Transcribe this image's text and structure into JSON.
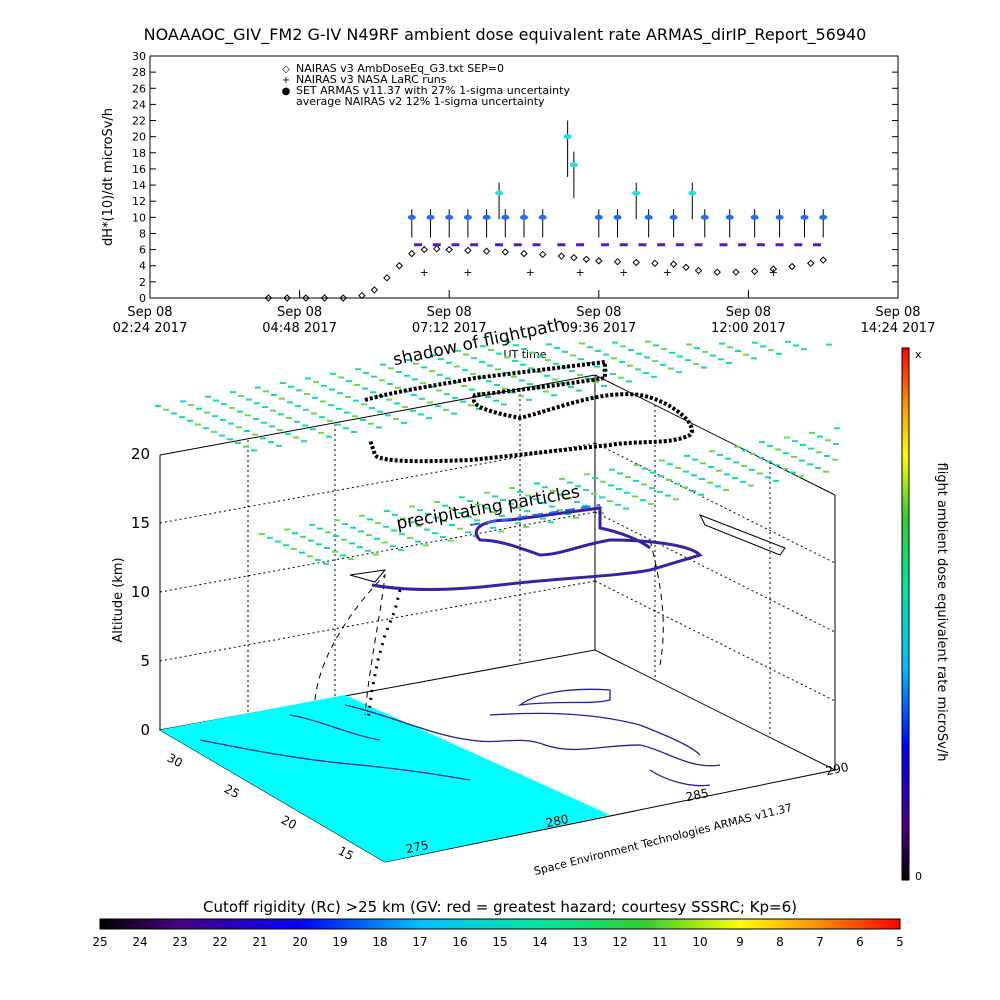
{
  "header": {
    "title": "NOAAAOC_GIV_FM2 G-IV   N49RF  ambient dose equivalent rate ARMAS_dirIP_Report_56940"
  },
  "chart_data": [
    {
      "type": "scatter",
      "ylabel": "dH*(10)/dt microSv/h",
      "ylim": [
        0,
        30
      ],
      "yticks": [
        "0",
        "2",
        "4",
        "6",
        "8",
        "10",
        "12",
        "14",
        "16",
        "18",
        "20",
        "22",
        "24",
        "26",
        "28",
        "30"
      ],
      "xticks": [
        {
          "date": "Sep 08",
          "time": "02:24 2017"
        },
        {
          "date": "Sep 08",
          "time": "04:48 2017"
        },
        {
          "date": "Sep 08",
          "time": "07:12 2017"
        },
        {
          "date": "Sep 08",
          "time": "09:36 2017"
        },
        {
          "date": "Sep 08",
          "time": "12:00 2017"
        },
        {
          "date": "Sep 08",
          "time": "14:24 2017"
        }
      ],
      "xlabel": "UT time",
      "xlim_hours": [
        2.4,
        14.4
      ],
      "legend": [
        {
          "marker": "◇",
          "label": "NAIRAS v3 AmbDoseEq_G3.txt SEP=0"
        },
        {
          "marker": "+",
          "label": "NAIRAS v3 NASA LaRC runs"
        },
        {
          "marker": "●",
          "label": "SET ARMAS v11.37 with 27% 1-sigma uncertainty"
        },
        {
          "marker": "",
          "label": "average NAIRAS v2 12% 1-sigma uncertainty"
        }
      ],
      "series": [
        {
          "name": "NAIRAS v3 AmbDoseEq_G3.txt SEP=0",
          "points": [
            [
              4.3,
              0
            ],
            [
              4.6,
              0
            ],
            [
              4.9,
              0
            ],
            [
              5.2,
              0
            ],
            [
              5.5,
              0
            ],
            [
              5.8,
              0.3
            ],
            [
              6.0,
              1
            ],
            [
              6.2,
              2.5
            ],
            [
              6.4,
              4
            ],
            [
              6.6,
              5.5
            ],
            [
              6.8,
              6
            ],
            [
              7.0,
              6.1
            ],
            [
              7.2,
              6
            ],
            [
              7.5,
              5.9
            ],
            [
              7.8,
              5.8
            ],
            [
              8.1,
              5.7
            ],
            [
              8.4,
              5.5
            ],
            [
              8.7,
              5.4
            ],
            [
              9.0,
              5.2
            ],
            [
              9.2,
              5
            ],
            [
              9.4,
              4.8
            ],
            [
              9.6,
              4.6
            ],
            [
              9.9,
              4.5
            ],
            [
              10.2,
              4.4
            ],
            [
              10.5,
              4.3
            ],
            [
              10.8,
              4.2
            ],
            [
              11.0,
              3.8
            ],
            [
              11.2,
              3.4
            ],
            [
              11.5,
              3.2
            ],
            [
              11.8,
              3.2
            ],
            [
              12.1,
              3.3
            ],
            [
              12.4,
              3.6
            ],
            [
              12.7,
              3.9
            ],
            [
              13.0,
              4.3
            ],
            [
              13.2,
              4.7
            ]
          ]
        },
        {
          "name": "SET ARMAS v11.37 with 27% 1-sigma uncertainty",
          "points": [
            [
              6.6,
              10
            ],
            [
              6.9,
              10
            ],
            [
              7.2,
              10
            ],
            [
              7.5,
              10
            ],
            [
              7.8,
              10
            ],
            [
              8.0,
              13
            ],
            [
              8.1,
              10
            ],
            [
              8.4,
              10
            ],
            [
              8.7,
              10
            ],
            [
              9.1,
              20
            ],
            [
              9.2,
              16.5
            ],
            [
              9.6,
              10
            ],
            [
              9.9,
              10
            ],
            [
              10.2,
              13
            ],
            [
              10.4,
              10
            ],
            [
              10.8,
              10
            ],
            [
              11.1,
              13
            ],
            [
              11.3,
              10
            ],
            [
              11.7,
              10
            ],
            [
              12.1,
              10
            ],
            [
              12.5,
              10
            ],
            [
              12.9,
              10
            ],
            [
              13.2,
              10
            ]
          ]
        },
        {
          "name": "average NAIRAS v2 12% 1-sigma uncertainty",
          "points": [
            [
              6.7,
              6.6
            ],
            [
              7.0,
              6.6
            ],
            [
              7.3,
              6.6
            ],
            [
              7.6,
              6.6
            ],
            [
              8.0,
              6.6
            ],
            [
              8.3,
              6.6
            ],
            [
              8.6,
              6.6
            ],
            [
              9.0,
              6.6
            ],
            [
              9.3,
              6.6
            ],
            [
              9.7,
              6.6
            ],
            [
              10.0,
              6.6
            ],
            [
              10.3,
              6.6
            ],
            [
              10.6,
              6.6
            ],
            [
              10.9,
              6.6
            ],
            [
              11.2,
              6.6
            ],
            [
              11.6,
              6.6
            ],
            [
              11.9,
              6.6
            ],
            [
              12.2,
              6.6
            ],
            [
              12.5,
              6.6
            ],
            [
              12.8,
              6.6
            ],
            [
              13.1,
              6.6
            ]
          ]
        },
        {
          "name": "NAIRAS v3 NASA LaRC runs",
          "points": [
            [
              6.8,
              3.2
            ],
            [
              7.5,
              3.2
            ],
            [
              8.5,
              3.2
            ],
            [
              9.3,
              3.2
            ],
            [
              10.0,
              3.2
            ],
            [
              10.7,
              3.2
            ],
            [
              12.4,
              3.2
            ]
          ]
        }
      ]
    },
    {
      "type": "scatter",
      "zlabel": "Altitude (km)",
      "zticks": [
        "0",
        "5",
        "10",
        "15",
        "20"
      ],
      "lat_ticks": [
        "30",
        "25",
        "20",
        "15"
      ],
      "lon_ticks": [
        "275",
        "280",
        "285",
        "290"
      ],
      "labels": {
        "shadow": "shadow of flightpath",
        "precip": "precipitating particles",
        "credit": "Space Environment Technologies ARMAS v11.37"
      },
      "colorbar_right": {
        "label": "flight ambient dose equivalent rate microSv/h",
        "top": "x",
        "bottom": "0"
      },
      "colorbar_bottom": {
        "label": "Cutoff rigidity (Rc) >25 km (GV: red = greatest hazard; courtesy SSSRC; Kp=6)",
        "ticks": [
          "25",
          "24",
          "23",
          "22",
          "21",
          "20",
          "19",
          "18",
          "17",
          "16",
          "15",
          "14",
          "13",
          "12",
          "11",
          "10",
          "9",
          "8",
          "7",
          "6",
          "5"
        ]
      }
    }
  ],
  "colors": {
    "armas": "#1e6cff",
    "nairas_v2": "#5a18b8",
    "nairas_v3": "#000000",
    "precip": "#3ddc84",
    "map_fill": "#00ffff"
  }
}
